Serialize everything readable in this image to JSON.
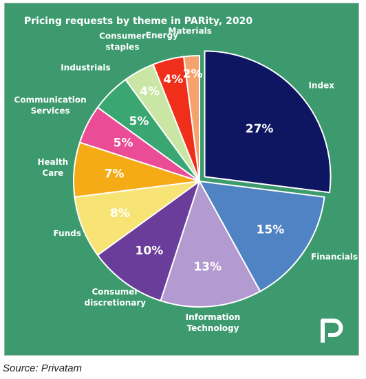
{
  "source": "Source: Privatam",
  "logo_icon": "privatam-p-logo",
  "chart_data": {
    "type": "pie",
    "title": "Pricing requests by theme in PARity, 2020",
    "slices": [
      {
        "label": "Index",
        "value": 27,
        "display": "27%",
        "color": "#0e1561"
      },
      {
        "label": "Financials",
        "value": 15,
        "display": "15%",
        "color": "#4f83c3"
      },
      {
        "label": "Information Technology",
        "value": 13,
        "display": "13%",
        "color": "#b39ad0"
      },
      {
        "label": "Consumer discretionary",
        "value": 10,
        "display": "10%",
        "color": "#6a3d9a"
      },
      {
        "label": "Funds",
        "value": 8,
        "display": "8%",
        "color": "#f8e475"
      },
      {
        "label": "Health Care",
        "value": 7,
        "display": "7%",
        "color": "#f5ab16"
      },
      {
        "label": "Communication Services",
        "value": 5,
        "display": "5%",
        "color": "#ea4d96"
      },
      {
        "label": "Industrials",
        "value": 5,
        "display": "5%",
        "color": "#3aa773"
      },
      {
        "label": "Consumer staples",
        "value": 4,
        "display": "4%",
        "color": "#c9e6a5"
      },
      {
        "label": "Energy",
        "value": 4,
        "display": "4%",
        "color": "#f02f1b"
      },
      {
        "label": "Materials",
        "value": 2,
        "display": "2%",
        "color": "#f4a36e"
      }
    ],
    "legend": "none"
  }
}
